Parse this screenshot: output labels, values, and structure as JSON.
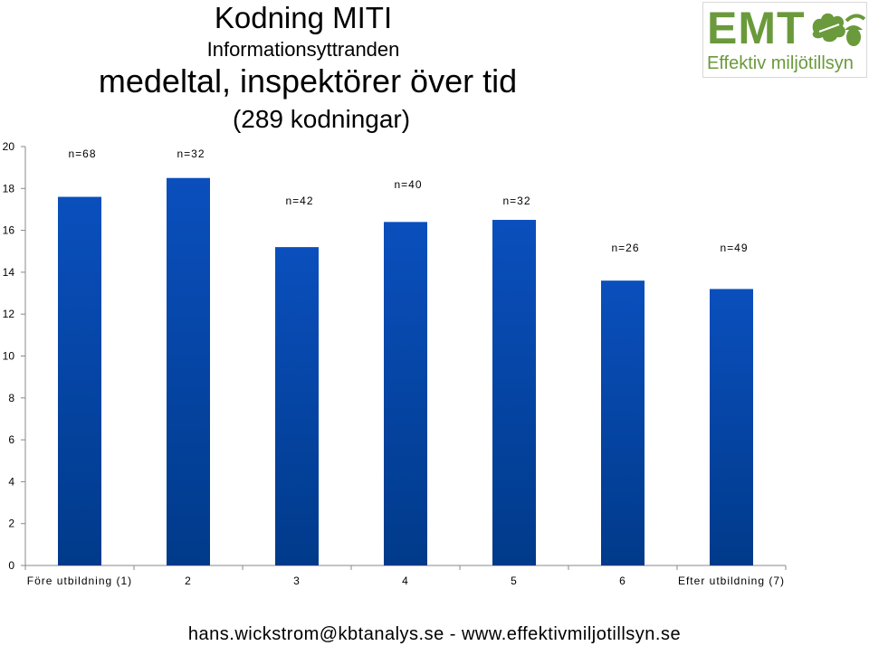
{
  "header": {
    "title": "Kodning MITI",
    "subtitle": "Informationsyttranden",
    "heading": "medeltal, inspektörer över tid",
    "count": "(289 kodningar)"
  },
  "logo": {
    "mark": "EMT",
    "tagline": "Effektiv miljötillsyn",
    "icon": "oak-leaf-acorn-icon",
    "color": "#6a9a3b"
  },
  "footer": {
    "text": "hans.wickstrom@kbtanalys.se  -  www.effektivmiljotillsyn.se"
  },
  "chart_data": {
    "type": "bar",
    "categories": [
      "Före utbildning (1)",
      "2",
      "3",
      "4",
      "5",
      "6",
      "Efter utbildning (7)"
    ],
    "values": [
      17.6,
      18.5,
      15.2,
      16.4,
      16.5,
      13.6,
      13.2
    ],
    "annotations": [
      "n=68",
      "n=32",
      "n=42",
      "n=40",
      "n=32",
      "n=26",
      "n=49"
    ],
    "ylim": [
      0,
      20
    ],
    "yticks": [
      0,
      2,
      4,
      6,
      8,
      10,
      12,
      14,
      16,
      18,
      20
    ],
    "grid": false,
    "bar_color_top": "#0a4fbd",
    "bar_color_bottom": "#003a8a"
  }
}
